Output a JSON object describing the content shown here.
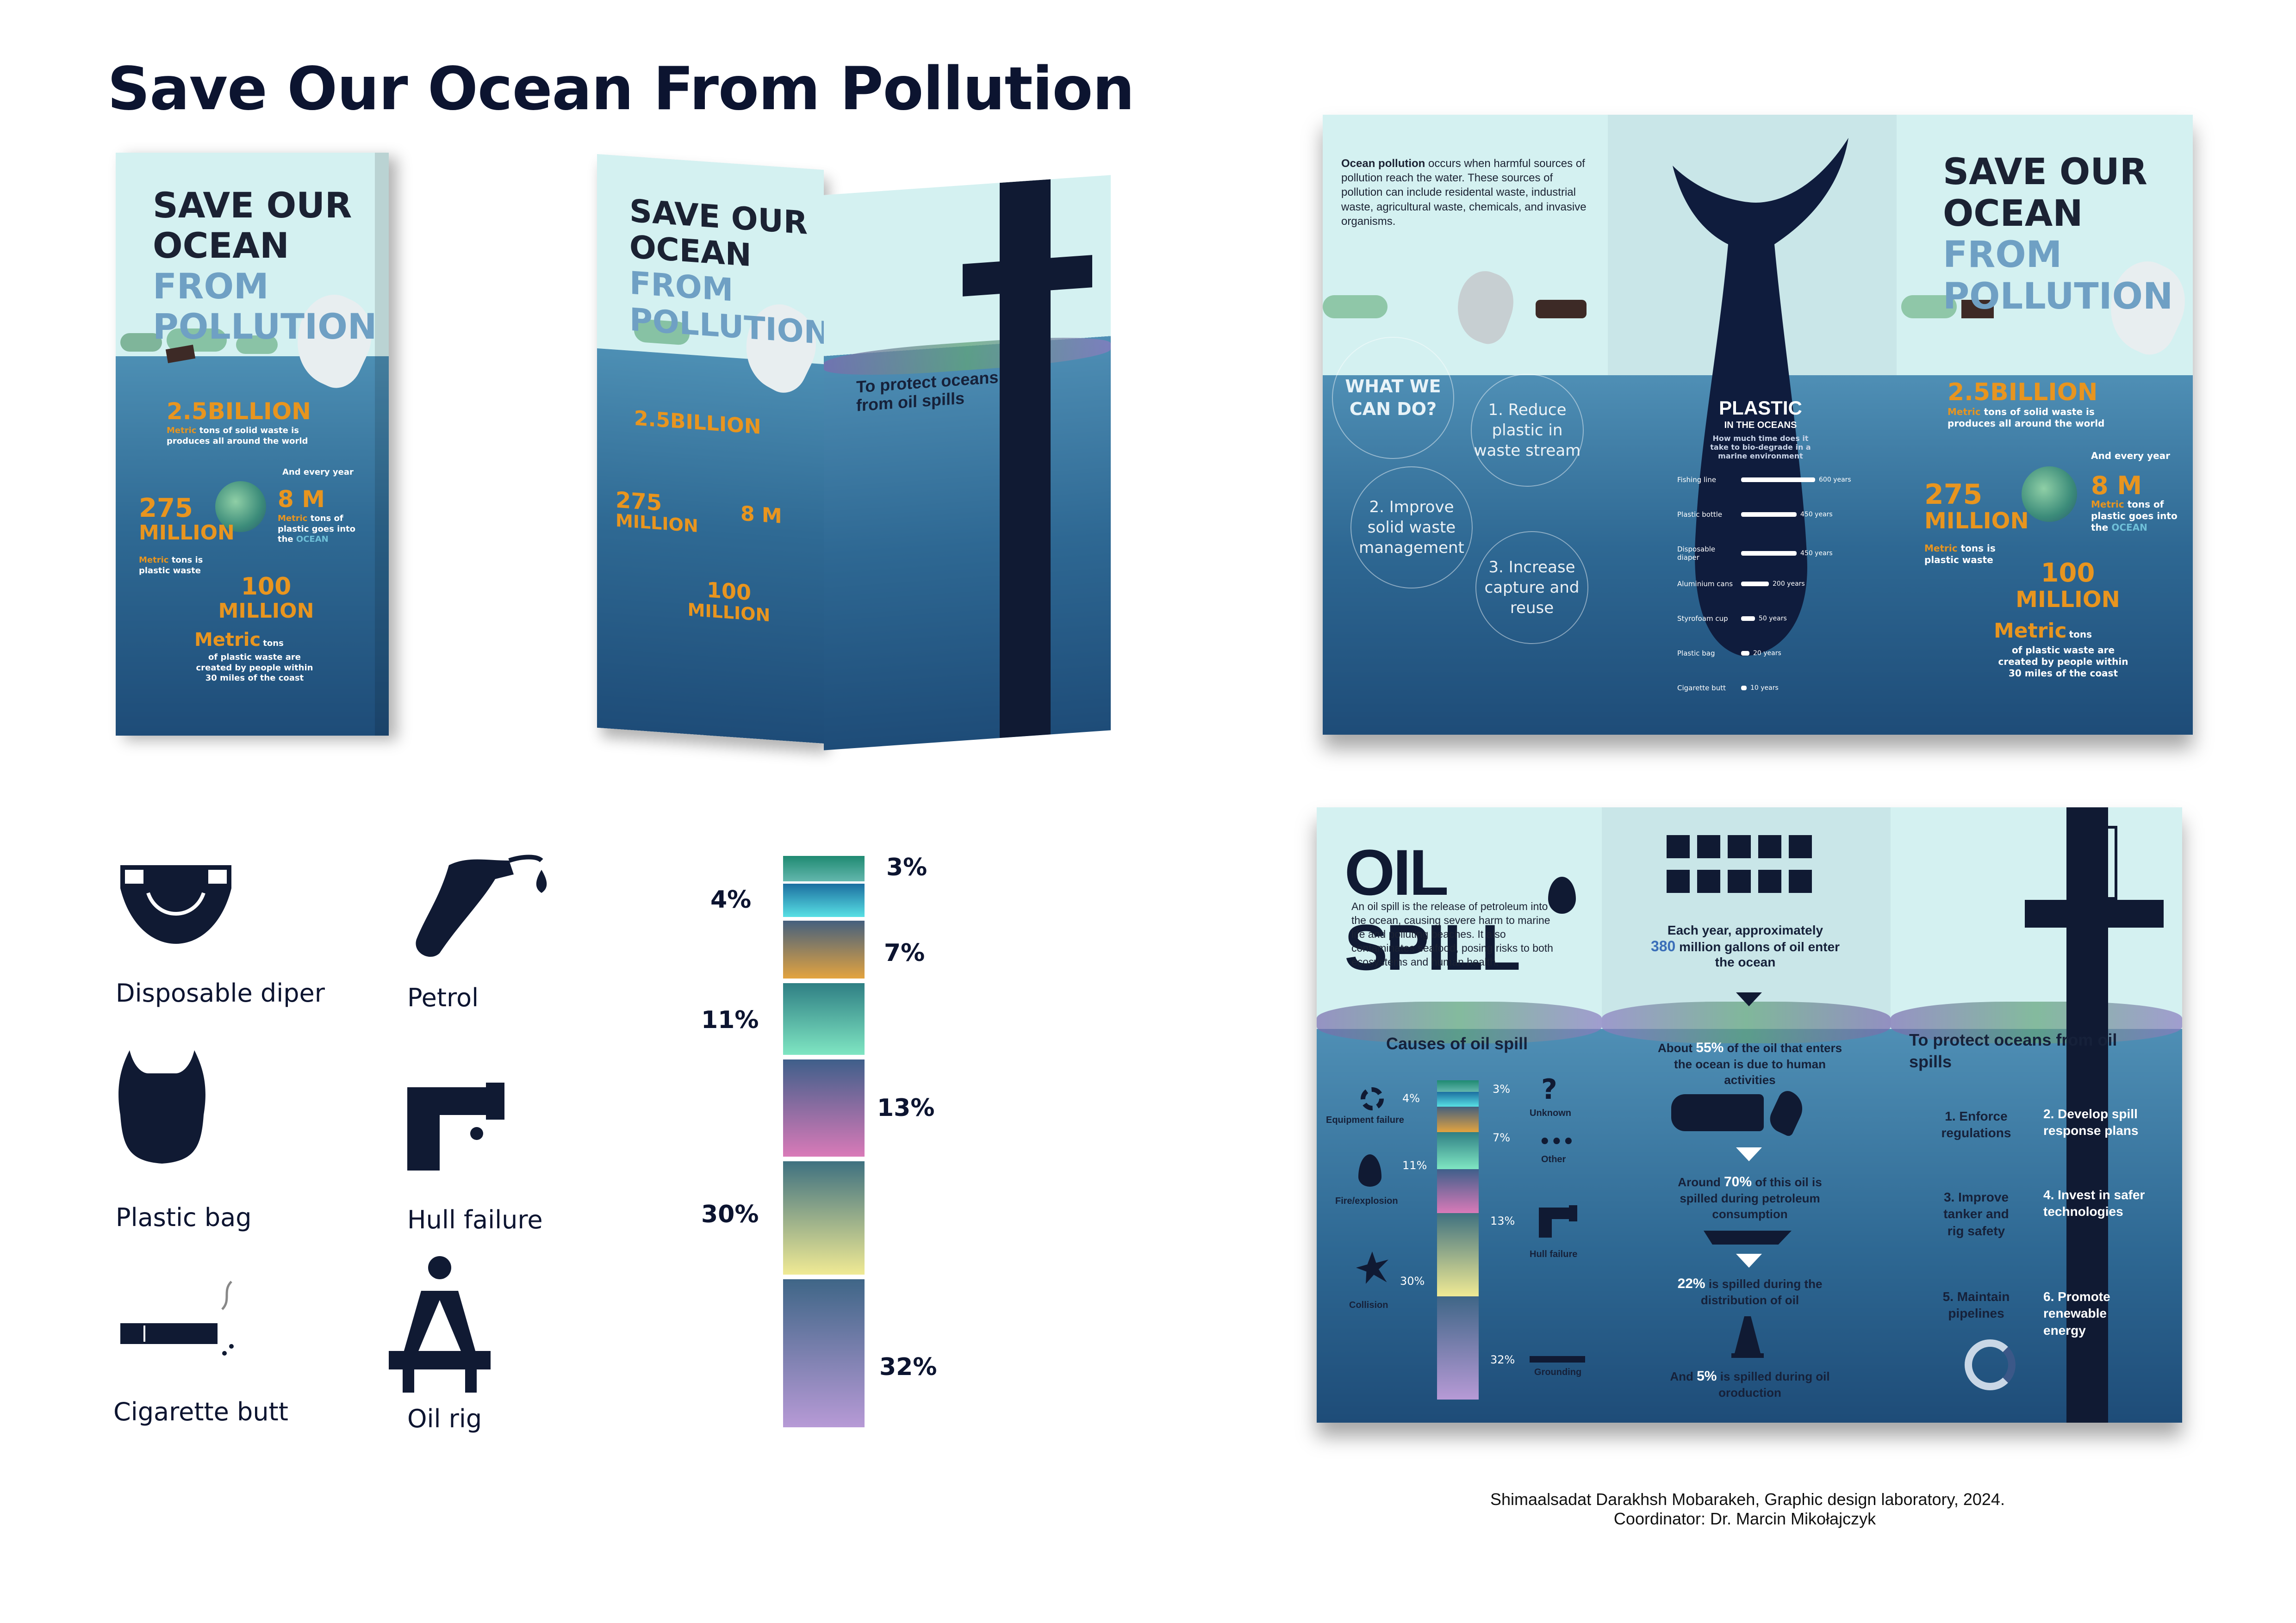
{
  "title": "Save Our Ocean From Pollution",
  "cover": {
    "line1": "SAVE OUR",
    "line2": "OCEAN",
    "from": "FROM",
    "line3": "POLLUTION"
  },
  "stats": {
    "b25": "2.5BILLION",
    "b25_text": "tons of solid waste is produces all around the world",
    "metric": "Metric",
    "every_year": "And every year",
    "m8": "8 M",
    "m8_text1": "tons of plastic goes into the",
    "ocean_word": "OCEAN",
    "m275": "275",
    "million": "MILLION",
    "m275_text": "tons is plastic waste",
    "m100": "100",
    "million100": "MILLION",
    "metric100": "Metric",
    "tons": "tons",
    "m100_text": "of plastic waste are created by people within 30 miles of the coast"
  },
  "protect": {
    "title": "To protect oceans from oil spills",
    "items": [
      "1. Enforce regulations",
      "2. Develop spill response plans",
      "3. Improve tanker and rig safety",
      "4. Invest in safer technologies",
      "5. Maintain pipelines",
      "6. Promote renewable energy"
    ]
  },
  "icons": [
    {
      "label": "Disposable diper",
      "icon": "diaper-icon"
    },
    {
      "label": "Petrol",
      "icon": "petrol-nozzle-icon"
    },
    {
      "label": "Plastic bag",
      "icon": "plastic-bag-icon"
    },
    {
      "label": "Hull failure",
      "icon": "pipe-icon"
    },
    {
      "label": "Cigarette butt",
      "icon": "cigarette-icon"
    },
    {
      "label": "Oil rig",
      "icon": "oil-rig-icon"
    }
  ],
  "percent_bar": {
    "segments": [
      {
        "label": "3%",
        "value": 3,
        "color_top": "#1f8a72",
        "color_bottom": "#63b7ad"
      },
      {
        "label": "4%",
        "value": 4,
        "color_top": "#1c6fa0",
        "color_bottom": "#58e0e4"
      },
      {
        "label": "7%",
        "value": 7,
        "color_top": "#45607e",
        "color_bottom": "#e3a33f"
      },
      {
        "label": "11%",
        "value": 11,
        "color_top": "#2f7f84",
        "color_bottom": "#7fe6c2"
      },
      {
        "label": "13%",
        "value": 13,
        "color_top": "#3f5f8a",
        "color_bottom": "#d97ab8"
      },
      {
        "label": "30%",
        "value": 30,
        "color_top": "#3f7180",
        "color_bottom": "#f0ea94"
      },
      {
        "label": "32%",
        "value": 32,
        "color_top": "#3f6687",
        "color_bottom": "#b79ad6"
      }
    ]
  },
  "spread1": {
    "intro_bold": "Ocean pollution",
    "intro_rest": "occurs when harmful sources of pollution reach the water. These sources of pollution can include residental waste, industrial waste, agricultural waste, chemicals, and invasive organisms.",
    "what_we": "WHAT WE CAN DO?",
    "c1": "1. Reduce plastic in waste stream",
    "c2": "2. Improve solid waste management",
    "c3": "3. Increase capture and reuse",
    "plastic_title": "PLASTIC",
    "in_oceans": "IN THE OCEANS",
    "question": "How much time does it take to bio-degrade in a marine environment",
    "items": [
      {
        "name": "Fishing line",
        "years": "600 years",
        "value": 600
      },
      {
        "name": "Plastic bottle",
        "years": "450 years",
        "value": 450
      },
      {
        "name": "Disposable diaper",
        "years": "450 years",
        "value": 450
      },
      {
        "name": "Aluminium cans",
        "years": "200 years",
        "value": 200
      },
      {
        "name": "Styrofoam cup",
        "years": "50 years",
        "value": 50
      },
      {
        "name": "Plastic bag",
        "years": "20 years",
        "value": 20
      },
      {
        "name": "Cigarette butt",
        "years": "10 years",
        "value": 10
      }
    ]
  },
  "spread2": {
    "oil_title": "OIL SPILL",
    "oil_desc": "An oil spill is the release of petroleum into the ocean, causing severe harm to marine life and polluting beaches. It also contaminates seafood, posing risks to both ecosystems and human health.",
    "causes_title": "Causes of oil spill",
    "causes": [
      {
        "label": "Equipment failure",
        "pct": "4%",
        "icon": "gear-icon"
      },
      {
        "label": "Fire/explosion",
        "pct": "11%",
        "icon": "fire-icon"
      },
      {
        "label": "Collision",
        "pct": "30%",
        "icon": "collision-icon"
      },
      {
        "label": "Unknown",
        "pct": "3%",
        "icon": "question-icon"
      },
      {
        "label": "Other",
        "pct": "7%",
        "icon": "dots-icon"
      },
      {
        "label": "Hull failure",
        "pct": "13%",
        "icon": "pipe-icon"
      },
      {
        "label": "Grounding",
        "pct": "32%",
        "icon": "grounding-icon"
      }
    ],
    "each_year1": "Each year, approximately",
    "each_year_num": "380",
    "each_year2": "million gallons of oil enter the ocean",
    "about1": "About",
    "about_pct": "55%",
    "about2": "of the oil that enters the ocean is due to human activities",
    "around1": "Around",
    "around_pct": "70%",
    "around2": "of this oil is spilled during petroleum consumption",
    "dist_pct": "22%",
    "dist_text": "is spilled during the distribution of oil",
    "prod1": "And",
    "prod_pct": "5%",
    "prod2": "is spilled during oil oroduction"
  },
  "credit": {
    "line1": "Shimaalsadat Darakhsh Mobarakeh, Graphic design laboratory, 2024.",
    "line2": "Coordinator: Dr. Marcin Mikołajczyk"
  }
}
